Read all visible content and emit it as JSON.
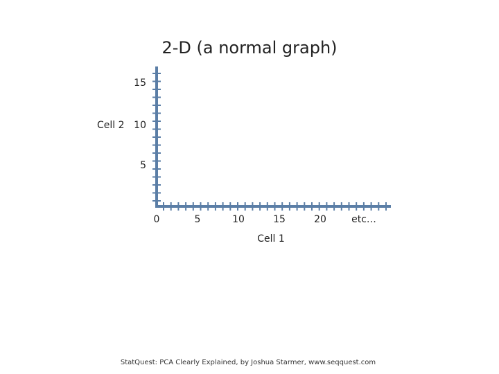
{
  "title": "2-D (a normal graph)",
  "y_axis": {
    "label": "Cell 2",
    "ticks": [
      "15",
      "10",
      "5"
    ]
  },
  "x_axis": {
    "label": "Cell 1",
    "ticks": [
      "0",
      "5",
      "10",
      "15",
      "20",
      "etc…"
    ]
  },
  "footer": "StatQuest: PCA Clearly Explained, by Joshua Starmer, www.seqquest.com"
}
